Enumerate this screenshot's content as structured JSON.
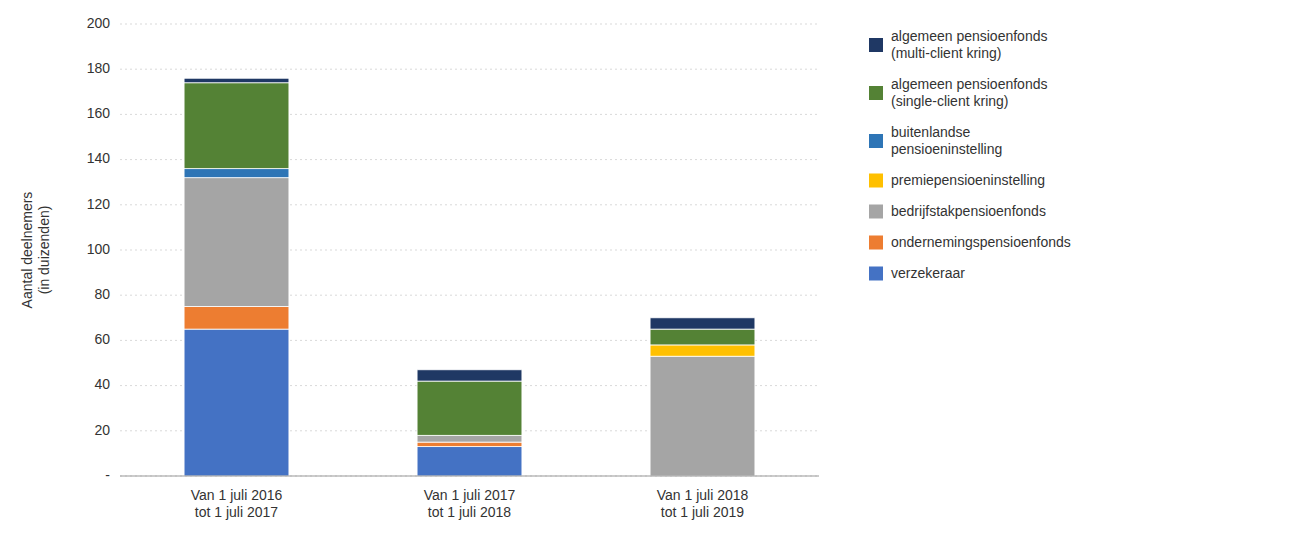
{
  "chart_data": {
    "type": "bar",
    "stacked": true,
    "categories": [
      "Van 1 juli 2016\ntot 1 juli 2017",
      "Van 1 juli 2017\ntot 1 juli 2018",
      "Van 1 juli 2018\ntot 1 juli 2019"
    ],
    "series": [
      {
        "name": "verzekeraar",
        "color": "#4472C4",
        "values": [
          65,
          13,
          0
        ]
      },
      {
        "name": "ondernemingspensioenfonds",
        "color": "#ED7D31",
        "values": [
          10,
          2,
          0
        ]
      },
      {
        "name": "bedrijfstakpensioenfonds",
        "color": "#A5A5A5",
        "values": [
          57,
          3,
          53
        ]
      },
      {
        "name": "premiepensioeninstelling",
        "color": "#FFC000",
        "values": [
          0,
          0,
          5
        ]
      },
      {
        "name": "buitenlandse\npensioeninstelling",
        "color": "#2E75B6",
        "values": [
          4,
          0,
          0
        ]
      },
      {
        "name": "algemeen pensioenfonds\n(single-client kring)",
        "color": "#548235",
        "values": [
          38,
          24,
          7
        ]
      },
      {
        "name": "algemeen pensioenfonds\n(multi-client kring)",
        "color": "#1F3864",
        "values": [
          2,
          5,
          5
        ]
      }
    ],
    "ylabel": "Aantal deelnemers\n(in duizenden)",
    "ylim": [
      0,
      200
    ],
    "yticks": [
      {
        "value": 0,
        "label": "-"
      },
      20,
      40,
      60,
      80,
      100,
      120,
      140,
      160,
      180,
      200
    ],
    "grid": true,
    "legend": "upper right"
  }
}
